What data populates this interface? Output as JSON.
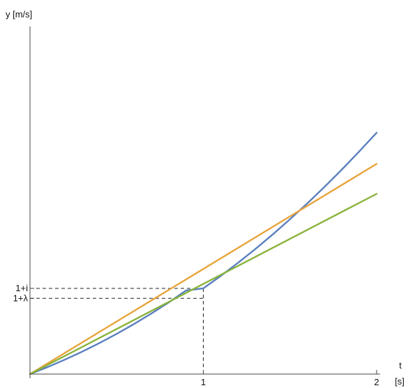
{
  "chart_data": {
    "type": "line",
    "title": "",
    "xlabel": "t",
    "xunit": "[s]",
    "ylabel": "y [m/s]",
    "xlim": [
      0,
      2
    ],
    "ylim": [
      0,
      3.35
    ],
    "grid": false,
    "legend": "none",
    "x_ticks": [
      {
        "value": 1,
        "label": "1"
      },
      {
        "value": 2,
        "label": "2"
      }
    ],
    "y_marks": [
      {
        "value": 0.826,
        "label": "1+i"
      },
      {
        "value": 0.73,
        "label": "1+λ"
      }
    ],
    "guides": [
      {
        "x": 1,
        "y": 0.826
      },
      {
        "x": 1,
        "y": 0.73
      }
    ],
    "series": [
      {
        "color": "#5b7fbf",
        "x": [
          0,
          0.1,
          0.2,
          0.3,
          0.4,
          0.5,
          0.6,
          0.7,
          0.8,
          0.9,
          1.0,
          1.1,
          1.2,
          1.3,
          1.4,
          1.5,
          1.6,
          1.7,
          1.8,
          1.9,
          2.0
        ],
        "y": [
          0,
          0.066,
          0.138,
          0.215,
          0.298,
          0.387,
          0.482,
          0.583,
          0.69,
          0.805,
          0.826,
          0.945,
          1.072,
          1.205,
          1.345,
          1.492,
          1.645,
          1.805,
          1.972,
          2.146,
          2.326
        ]
      },
      {
        "color": "#e8a33a",
        "x": [
          0,
          2
        ],
        "y": [
          0,
          2.026
        ]
      },
      {
        "color": "#8ab43c",
        "x": [
          0,
          2
        ],
        "y": [
          0,
          1.737
        ]
      }
    ]
  }
}
